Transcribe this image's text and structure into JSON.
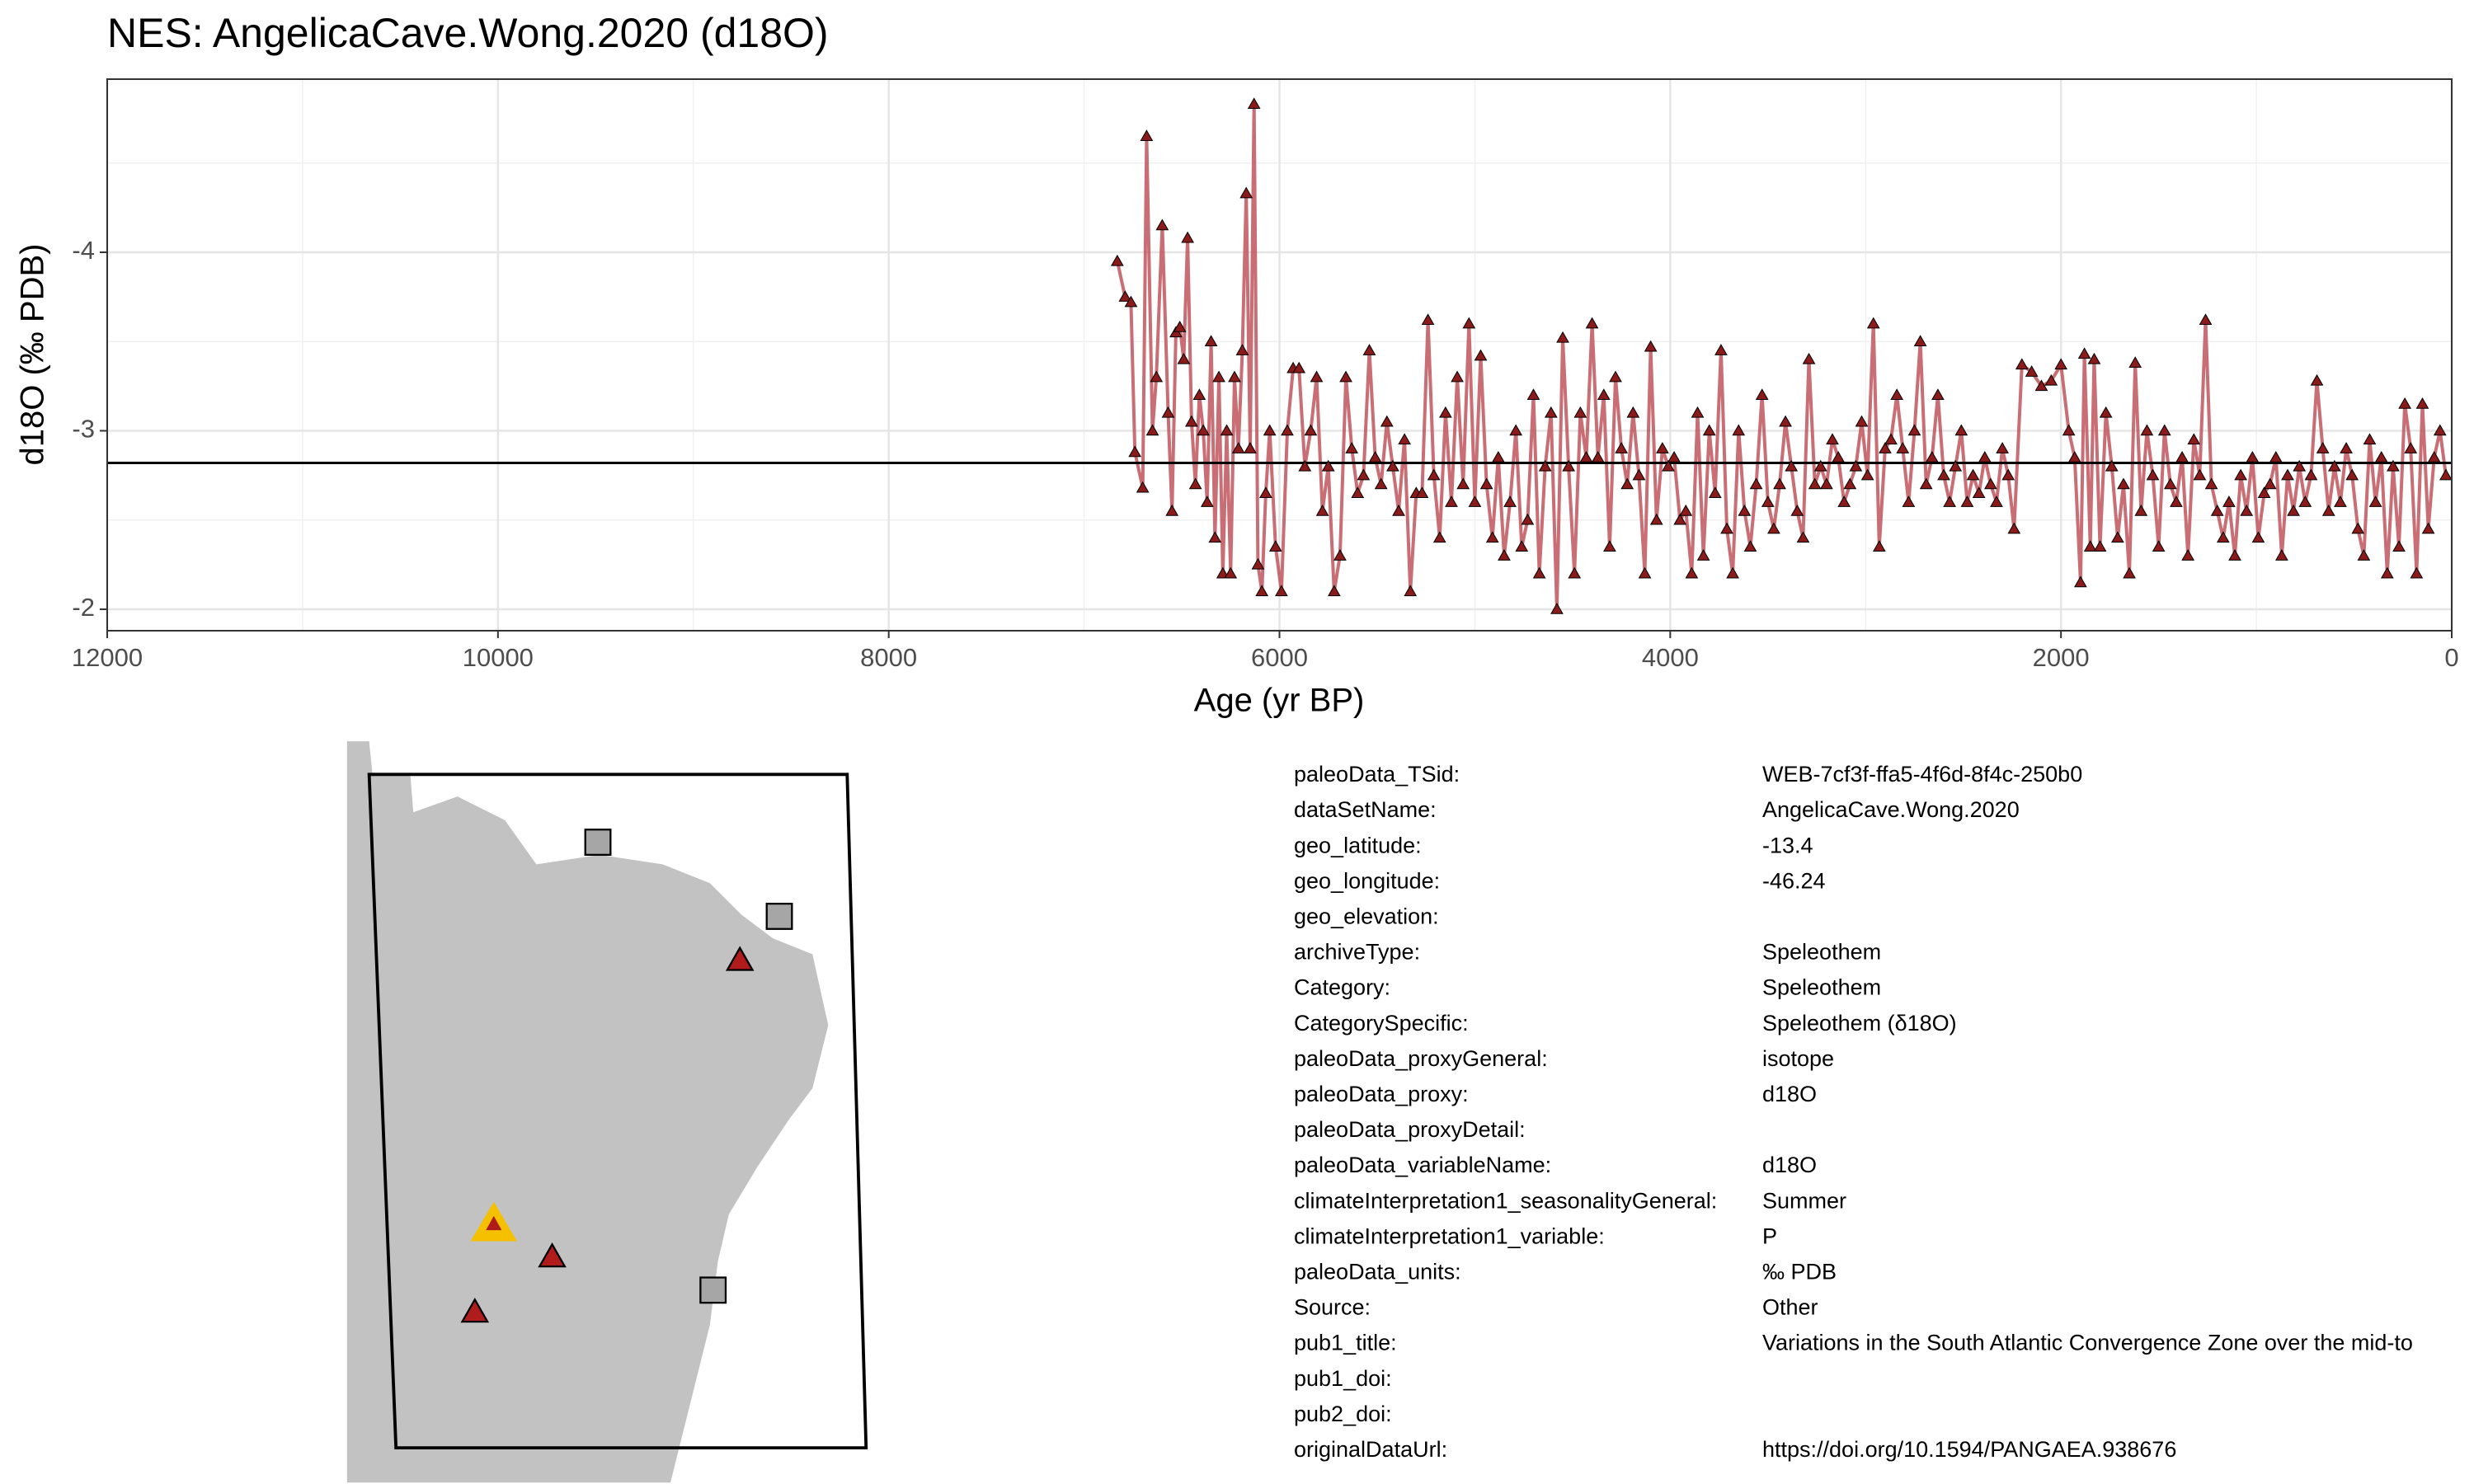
{
  "chart_data": {
    "type": "line",
    "title": "NES: AngelicaCave.Wong.2020 (d18O)",
    "x_label": "Age (yr BP)",
    "y_label": "d18O (‰ PDB)",
    "xlim": [
      12000,
      0
    ],
    "xticks": [
      12000,
      10000,
      8000,
      6000,
      4000,
      2000,
      0
    ],
    "ylim": [
      -1.88,
      -4.97
    ],
    "yticks": [
      -4,
      -3,
      -2
    ],
    "grid": true,
    "hline": -2.82,
    "hline_color": "#000000",
    "color": "#c0555c",
    "marker_color": "#8b1a1a",
    "x": [
      6830,
      6790,
      6760,
      6740,
      6700,
      6680,
      6650,
      6630,
      6600,
      6570,
      6550,
      6530,
      6510,
      6490,
      6470,
      6450,
      6430,
      6410,
      6390,
      6370,
      6350,
      6330,
      6310,
      6290,
      6270,
      6250,
      6230,
      6210,
      6190,
      6170,
      6150,
      6130,
      6110,
      6090,
      6070,
      6050,
      6020,
      5990,
      5960,
      5930,
      5900,
      5870,
      5840,
      5810,
      5780,
      5750,
      5720,
      5690,
      5660,
      5630,
      5600,
      5570,
      5540,
      5510,
      5480,
      5450,
      5420,
      5390,
      5360,
      5330,
      5300,
      5270,
      5240,
      5210,
      5180,
      5150,
      5120,
      5090,
      5060,
      5030,
      5000,
      4970,
      4940,
      4910,
      4880,
      4850,
      4820,
      4790,
      4760,
      4730,
      4700,
      4670,
      4640,
      4610,
      4580,
      4550,
      4520,
      4490,
      4460,
      4430,
      4400,
      4370,
      4340,
      4310,
      4280,
      4250,
      4220,
      4190,
      4160,
      4130,
      4100,
      4070,
      4040,
      4010,
      3980,
      3950,
      3920,
      3890,
      3860,
      3830,
      3800,
      3770,
      3740,
      3710,
      3680,
      3650,
      3620,
      3590,
      3560,
      3530,
      3500,
      3470,
      3440,
      3410,
      3380,
      3350,
      3320,
      3290,
      3260,
      3230,
      3200,
      3170,
      3140,
      3110,
      3080,
      3050,
      3020,
      2990,
      2960,
      2930,
      2900,
      2870,
      2840,
      2810,
      2780,
      2750,
      2720,
      2690,
      2660,
      2630,
      2600,
      2570,
      2540,
      2510,
      2480,
      2450,
      2420,
      2390,
      2360,
      2330,
      2300,
      2270,
      2240,
      2200,
      2150,
      2100,
      2050,
      2000,
      1960,
      1930,
      1900,
      1880,
      1850,
      1830,
      1800,
      1770,
      1740,
      1710,
      1680,
      1650,
      1620,
      1590,
      1560,
      1530,
      1500,
      1470,
      1440,
      1410,
      1380,
      1350,
      1320,
      1290,
      1260,
      1230,
      1200,
      1170,
      1140,
      1110,
      1080,
      1050,
      1020,
      990,
      960,
      930,
      900,
      870,
      840,
      810,
      780,
      750,
      720,
      690,
      660,
      630,
      600,
      570,
      540,
      510,
      480,
      450,
      420,
      390,
      360,
      330,
      300,
      270,
      240,
      210,
      180,
      150,
      120,
      90,
      60,
      30
    ],
    "values": [
      -3.95,
      -3.75,
      -3.72,
      -2.88,
      -2.68,
      -4.65,
      -3.0,
      -3.3,
      -4.15,
      -3.1,
      -2.55,
      -3.55,
      -3.58,
      -3.4,
      -4.08,
      -3.05,
      -2.7,
      -3.2,
      -3.0,
      -2.6,
      -3.5,
      -2.4,
      -3.3,
      -2.2,
      -3.0,
      -2.2,
      -3.3,
      -2.9,
      -3.45,
      -4.33,
      -2.9,
      -4.83,
      -2.25,
      -2.1,
      -2.65,
      -3.0,
      -2.35,
      -2.1,
      -3.0,
      -3.35,
      -3.35,
      -2.8,
      -3.0,
      -3.3,
      -2.55,
      -2.8,
      -2.1,
      -2.3,
      -3.3,
      -2.9,
      -2.65,
      -2.75,
      -3.45,
      -2.85,
      -2.7,
      -3.05,
      -2.8,
      -2.55,
      -2.95,
      -2.1,
      -2.65,
      -2.65,
      -3.62,
      -2.75,
      -2.4,
      -3.1,
      -2.6,
      -3.3,
      -2.7,
      -3.6,
      -2.6,
      -3.42,
      -2.7,
      -2.4,
      -2.85,
      -2.3,
      -2.6,
      -3.0,
      -2.35,
      -2.5,
      -3.2,
      -2.2,
      -2.8,
      -3.1,
      -2.0,
      -3.52,
      -2.8,
      -2.2,
      -3.1,
      -2.85,
      -3.6,
      -2.85,
      -3.2,
      -2.35,
      -3.3,
      -2.9,
      -2.7,
      -3.1,
      -2.75,
      -2.2,
      -3.47,
      -2.5,
      -2.9,
      -2.8,
      -2.85,
      -2.5,
      -2.55,
      -2.2,
      -3.1,
      -2.3,
      -3.0,
      -2.65,
      -3.45,
      -2.45,
      -2.2,
      -3.0,
      -2.55,
      -2.35,
      -2.7,
      -3.2,
      -2.6,
      -2.45,
      -2.7,
      -3.05,
      -2.8,
      -2.55,
      -2.4,
      -3.4,
      -2.7,
      -2.8,
      -2.7,
      -2.95,
      -2.85,
      -2.6,
      -2.7,
      -2.8,
      -3.05,
      -2.75,
      -3.6,
      -2.35,
      -2.9,
      -2.95,
      -3.2,
      -2.9,
      -2.6,
      -3.0,
      -3.5,
      -2.7,
      -2.85,
      -3.2,
      -2.75,
      -2.6,
      -2.8,
      -3.0,
      -2.6,
      -2.75,
      -2.65,
      -2.85,
      -2.7,
      -2.6,
      -2.9,
      -2.75,
      -2.45,
      -3.37,
      -3.33,
      -3.25,
      -3.28,
      -3.37,
      -3.0,
      -2.85,
      -2.15,
      -3.43,
      -2.35,
      -3.4,
      -2.35,
      -3.1,
      -2.8,
      -2.4,
      -2.7,
      -2.2,
      -3.38,
      -2.55,
      -3.0,
      -2.75,
      -2.35,
      -3.0,
      -2.7,
      -2.6,
      -2.85,
      -2.3,
      -2.95,
      -2.75,
      -3.62,
      -2.7,
      -2.55,
      -2.4,
      -2.6,
      -2.3,
      -2.75,
      -2.55,
      -2.85,
      -2.4,
      -2.65,
      -2.7,
      -2.85,
      -2.3,
      -2.75,
      -2.55,
      -2.8,
      -2.6,
      -2.75,
      -3.28,
      -2.9,
      -2.55,
      -2.8,
      -2.6,
      -2.9,
      -2.75,
      -2.45,
      -2.3,
      -2.95,
      -2.6,
      -2.85,
      -2.2,
      -2.8,
      -2.35,
      -3.15,
      -2.9,
      -2.2,
      -3.15,
      -2.45,
      -2.85,
      -3.0,
      -2.75
    ]
  },
  "metadata": {
    "rows": [
      {
        "key": "paleoData_TSid:",
        "value": "WEB-7cf3f-ffa5-4f6d-8f4c-250b0"
      },
      {
        "key": "dataSetName:",
        "value": "AngelicaCave.Wong.2020"
      },
      {
        "key": "geo_latitude:",
        "value": "-13.4"
      },
      {
        "key": "geo_longitude:",
        "value": "-46.24"
      },
      {
        "key": "geo_elevation:"
      },
      {
        "key": "archiveType:",
        "value": "Speleothem"
      },
      {
        "key": "Category:",
        "value": "Speleothem"
      },
      {
        "key": "CategorySpecific:",
        "value": "Speleothem (δ18O)"
      },
      {
        "key": "paleoData_proxyGeneral:",
        "value": "isotope"
      },
      {
        "key": "paleoData_proxy:",
        "value": "d18O"
      },
      {
        "key": "paleoData_proxyDetail:"
      },
      {
        "key": "paleoData_variableName:",
        "value": "d18O"
      },
      {
        "key": "climateInterpretation1_seasonalityGeneral:",
        "value": "Summer"
      },
      {
        "key": "climateInterpretation1_variable:",
        "value": "P"
      },
      {
        "key": "paleoData_units:",
        "value": "‰ PDB"
      },
      {
        "key": "Source:",
        "value": "Other"
      },
      {
        "key": "pub1_title:",
        "value": "Variations in the South Atlantic Convergence Zone over the mid-to"
      },
      {
        "key": "pub1_doi:"
      },
      {
        "key": "pub2_doi:"
      },
      {
        "key": "originalDataUrl:",
        "value": "https://doi.org/10.1594/PANGAEA.938676"
      }
    ]
  }
}
